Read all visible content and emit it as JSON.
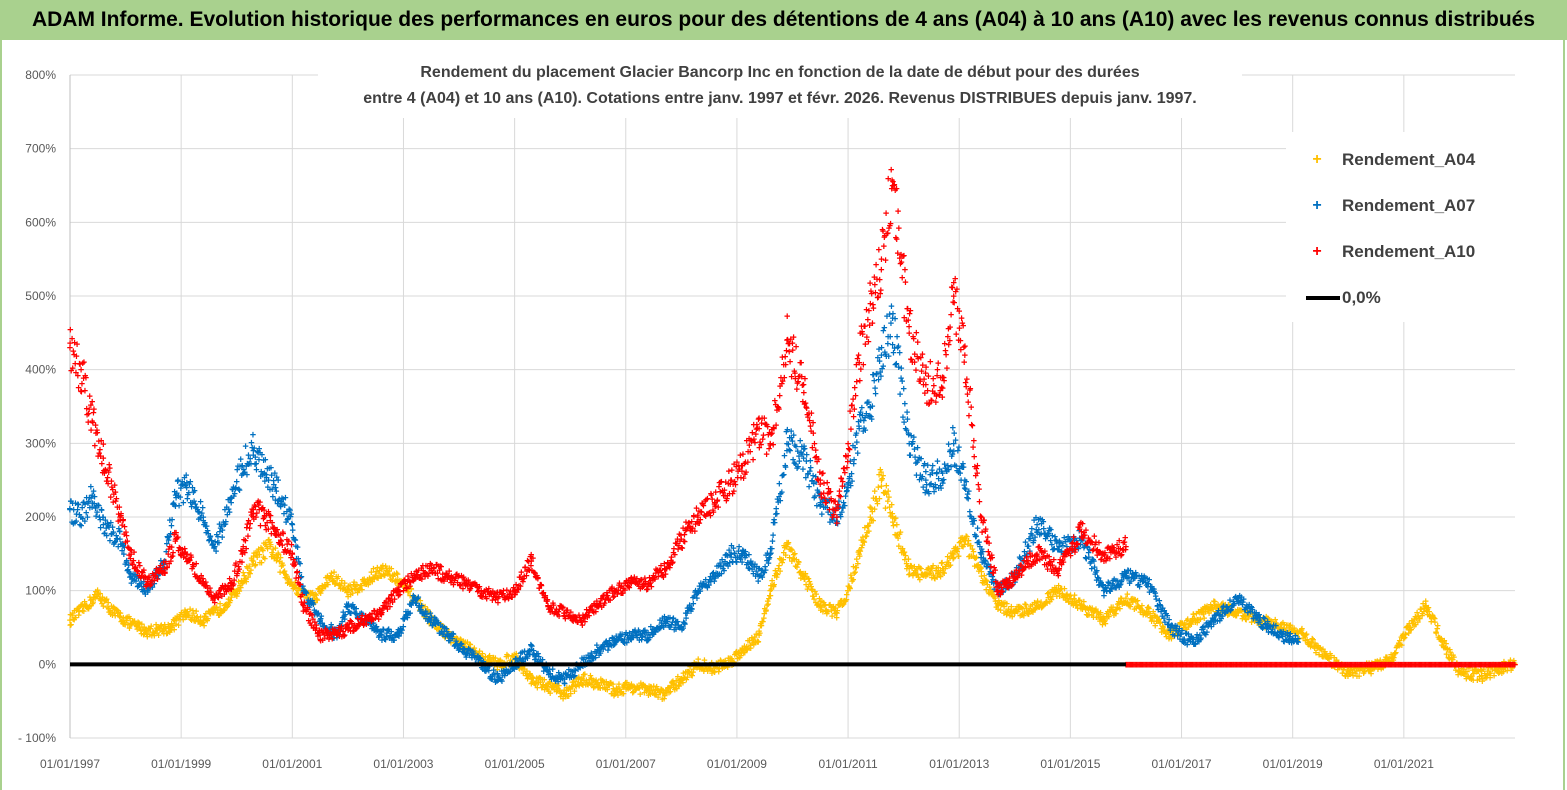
{
  "banner": {
    "title": "ADAM Informe. Evolution historique des performances en euros pour des détentions de 4 ans (A04) à 10 ans (A10) avec les revenus connus distribués"
  },
  "colors": {
    "banner_bg": "#a9d18e",
    "a04": "#ffc000",
    "a07": "#0070c0",
    "a10": "#ff0000",
    "zero": "#000000"
  },
  "chart_data": {
    "type": "scatter",
    "title_line1": "Rendement du placement Glacier Bancorp Inc en fonction de la date de début pour des durées",
    "title_line2": "entre 4 (A04) et 10 ans (A10).  Cotations entre janv. 1997 et févr. 2026. Revenus DISTRIBUES depuis janv. 1997.",
    "xlabel": "",
    "ylabel": "",
    "xlim": [
      1997.0,
      2023.0
    ],
    "ylim": [
      -100,
      800
    ],
    "yticks": [
      -100,
      0,
      100,
      200,
      300,
      400,
      500,
      600,
      700,
      800
    ],
    "ytick_labels": [
      "- 100%",
      "0%",
      "100%",
      "200%",
      "300%",
      "400%",
      "500%",
      "600%",
      "700%",
      "800%"
    ],
    "xticks": [
      1997,
      1999,
      2001,
      2003,
      2005,
      2007,
      2009,
      2011,
      2013,
      2015,
      2017,
      2019,
      2021
    ],
    "xtick_labels": [
      "01/01/1997",
      "01/01/1999",
      "01/01/2001",
      "01/01/2003",
      "01/01/2005",
      "01/01/2007",
      "01/01/2009",
      "01/01/2011",
      "01/01/2013",
      "01/01/2015",
      "01/01/2017",
      "01/01/2019",
      "01/01/2021"
    ],
    "legend_position": "right",
    "series": [
      {
        "name": "Rendement_A04",
        "x": [
          1997.0,
          1997.3,
          1997.5,
          1997.8,
          1998.1,
          1998.4,
          1998.8,
          1999.1,
          1999.4,
          1999.7,
          2000.0,
          2000.3,
          2000.6,
          2000.9,
          2001.1,
          2001.4,
          2001.7,
          2002.0,
          2002.3,
          2002.6,
          2002.9,
          2003.2,
          2003.5,
          2003.8,
          2004.1,
          2004.4,
          2004.7,
          2005.0,
          2005.3,
          2005.6,
          2005.9,
          2006.2,
          2006.5,
          2006.8,
          2007.1,
          2007.4,
          2007.7,
          2008.0,
          2008.3,
          2008.6,
          2008.9,
          2009.1,
          2009.4,
          2009.6,
          2009.9,
          2010.2,
          2010.5,
          2010.8,
          2011.0,
          2011.2,
          2011.4,
          2011.6,
          2011.8,
          2012.1,
          2012.4,
          2012.7,
          2012.9,
          2013.1,
          2013.4,
          2013.7,
          2014.0,
          2014.4,
          2014.8,
          2015.2,
          2015.6,
          2016.0,
          2016.4,
          2016.8,
          2017.2,
          2017.6,
          2018.0,
          2018.4,
          2018.8,
          2019.2,
          2019.6,
          2020.0,
          2020.4,
          2020.8,
          2021.1,
          2021.4,
          2021.7,
          2022.0,
          2022.4,
          2022.7,
          2023.0
        ],
        "values": [
          60,
          80,
          95,
          70,
          55,
          45,
          50,
          70,
          60,
          75,
          100,
          140,
          160,
          120,
          100,
          90,
          120,
          100,
          110,
          130,
          115,
          90,
          60,
          40,
          25,
          10,
          0,
          10,
          -20,
          -30,
          -40,
          -20,
          -25,
          -35,
          -30,
          -35,
          -40,
          -20,
          0,
          -5,
          5,
          20,
          40,
          100,
          160,
          120,
          80,
          70,
          100,
          150,
          200,
          250,
          200,
          130,
          120,
          130,
          150,
          170,
          120,
          80,
          70,
          80,
          100,
          80,
          60,
          90,
          70,
          40,
          60,
          80,
          70,
          60,
          50,
          40,
          10,
          -10,
          -5,
          10,
          50,
          80,
          30,
          -10,
          -15,
          -5,
          0
        ]
      },
      {
        "name": "Rendement_A07",
        "x": [
          1997.0,
          1997.2,
          1997.4,
          1997.6,
          1997.9,
          1998.1,
          1998.4,
          1998.7,
          1998.9,
          1999.1,
          1999.4,
          1999.6,
          1999.9,
          2000.1,
          2000.3,
          2000.5,
          2000.7,
          2001.0,
          2001.2,
          2001.5,
          2001.8,
          2002.0,
          2002.3,
          2002.6,
          2002.9,
          2003.2,
          2003.5,
          2003.8,
          2004.1,
          2004.4,
          2004.7,
          2005.0,
          2005.3,
          2005.6,
          2005.9,
          2006.2,
          2006.5,
          2006.8,
          2007.1,
          2007.4,
          2007.7,
          2008.0,
          2008.3,
          2008.6,
          2008.9,
          2009.1,
          2009.4,
          2009.6,
          2009.9,
          2010.2,
          2010.5,
          2010.8,
          2011.0,
          2011.2,
          2011.4,
          2011.6,
          2011.8,
          2012.1,
          2012.4,
          2012.7,
          2012.9,
          2013.1,
          2013.4,
          2013.7,
          2014.0,
          2014.4,
          2014.8,
          2015.2,
          2015.6,
          2016.0,
          2016.4,
          2016.8,
          2017.2,
          2017.6,
          2018.0,
          2018.4,
          2018.8,
          2019.1
        ],
        "values": [
          210,
          200,
          230,
          190,
          170,
          120,
          100,
          140,
          230,
          240,
          200,
          160,
          220,
          270,
          290,
          260,
          240,
          190,
          100,
          60,
          40,
          80,
          60,
          40,
          40,
          90,
          60,
          40,
          20,
          0,
          -20,
          0,
          20,
          -10,
          -20,
          0,
          20,
          30,
          40,
          40,
          60,
          50,
          100,
          120,
          150,
          150,
          120,
          150,
          300,
          280,
          220,
          200,
          240,
          320,
          350,
          420,
          470,
          300,
          250,
          260,
          300,
          250,
          150,
          100,
          120,
          190,
          160,
          170,
          100,
          120,
          110,
          50,
          30,
          60,
          90,
          60,
          40,
          30
        ]
      },
      {
        "name": "Rendement_A10",
        "x": [
          1997.0,
          1997.2,
          1997.4,
          1997.6,
          1997.9,
          1998.1,
          1998.4,
          1998.7,
          1998.9,
          1999.1,
          1999.4,
          1999.6,
          1999.9,
          2000.1,
          2000.3,
          2000.5,
          2000.7,
          2001.0,
          2001.2,
          2001.5,
          2001.8,
          2002.0,
          2002.3,
          2002.6,
          2002.9,
          2003.2,
          2003.5,
          2003.8,
          2004.1,
          2004.4,
          2004.7,
          2005.0,
          2005.3,
          2005.6,
          2005.9,
          2006.2,
          2006.5,
          2006.8,
          2007.1,
          2007.4,
          2007.7,
          2008.0,
          2008.3,
          2008.6,
          2008.9,
          2009.1,
          2009.4,
          2009.6,
          2009.9,
          2010.2,
          2010.5,
          2010.8,
          2011.0,
          2011.2,
          2011.4,
          2011.6,
          2011.8,
          2012.1,
          2012.4,
          2012.7,
          2012.9,
          2013.1,
          2013.4,
          2013.7,
          2014.0,
          2014.4,
          2014.8,
          2015.2,
          2015.6,
          2016.0
        ],
        "values": [
          430,
          400,
          330,
          280,
          200,
          150,
          110,
          130,
          170,
          150,
          110,
          90,
          110,
          150,
          210,
          200,
          180,
          150,
          80,
          40,
          40,
          50,
          60,
          70,
          100,
          120,
          130,
          120,
          110,
          100,
          90,
          100,
          140,
          80,
          70,
          60,
          80,
          100,
          110,
          110,
          130,
          170,
          200,
          220,
          250,
          270,
          320,
          300,
          440,
          380,
          250,
          200,
          300,
          410,
          490,
          550,
          650,
          450,
          380,
          390,
          500,
          420,
          200,
          100,
          120,
          150,
          130,
          180,
          150,
          160
        ]
      },
      {
        "name": "0,0%",
        "x": [
          1997.0,
          2023.0
        ],
        "values": [
          0,
          0
        ]
      }
    ],
    "a10_flat_segment": {
      "x_start": 2016.0,
      "x_end": 2023.0,
      "value": 0
    }
  }
}
